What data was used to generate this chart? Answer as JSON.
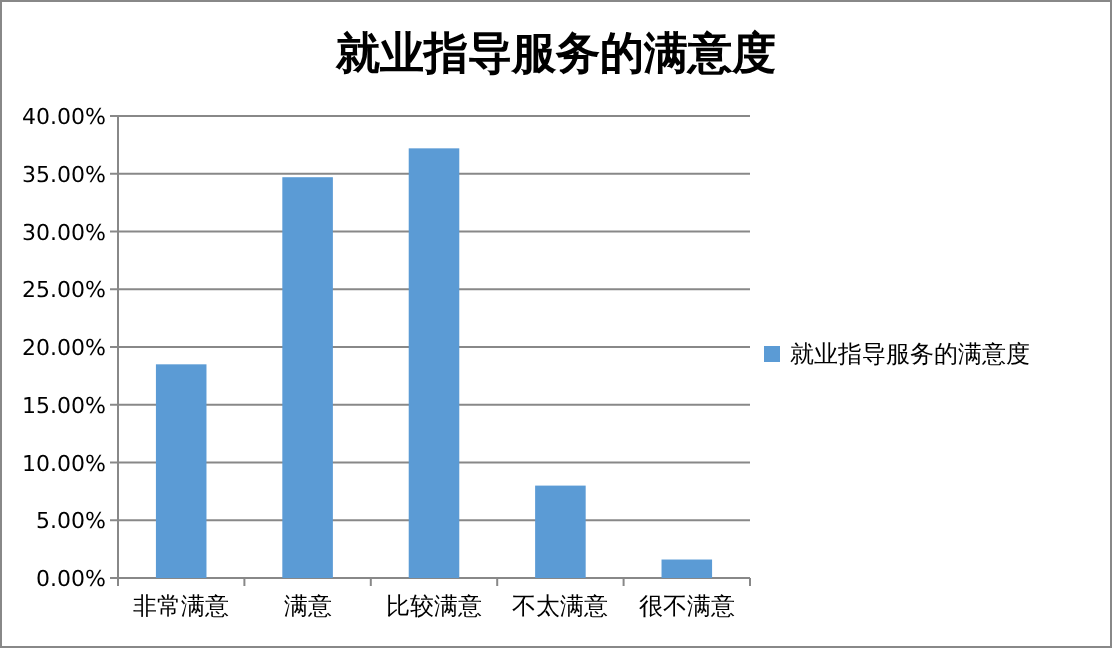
{
  "chart_data": {
    "type": "bar",
    "title": "就业指导服务的满意度",
    "categories": [
      "非常满意",
      "满意",
      "比较满意",
      "不太满意",
      "很不满意"
    ],
    "series": [
      {
        "name": "就业指导服务的满意度",
        "color": "#5b9bd5",
        "values": [
          18.5,
          34.7,
          37.2,
          8.0,
          1.6
        ]
      }
    ],
    "ylim": [
      0,
      40
    ],
    "yticks": [
      {
        "value": 0,
        "label": "0.00%"
      },
      {
        "value": 5,
        "label": "5.00%"
      },
      {
        "value": 10,
        "label": "10.00%"
      },
      {
        "value": 15,
        "label": "15.00%"
      },
      {
        "value": 20,
        "label": "20.00%"
      },
      {
        "value": 25,
        "label": "25.00%"
      },
      {
        "value": 30,
        "label": "30.00%"
      },
      {
        "value": 35,
        "label": "35.00%"
      },
      {
        "value": 40,
        "label": "40.00%"
      }
    ],
    "grid": "y",
    "legend": "right"
  }
}
